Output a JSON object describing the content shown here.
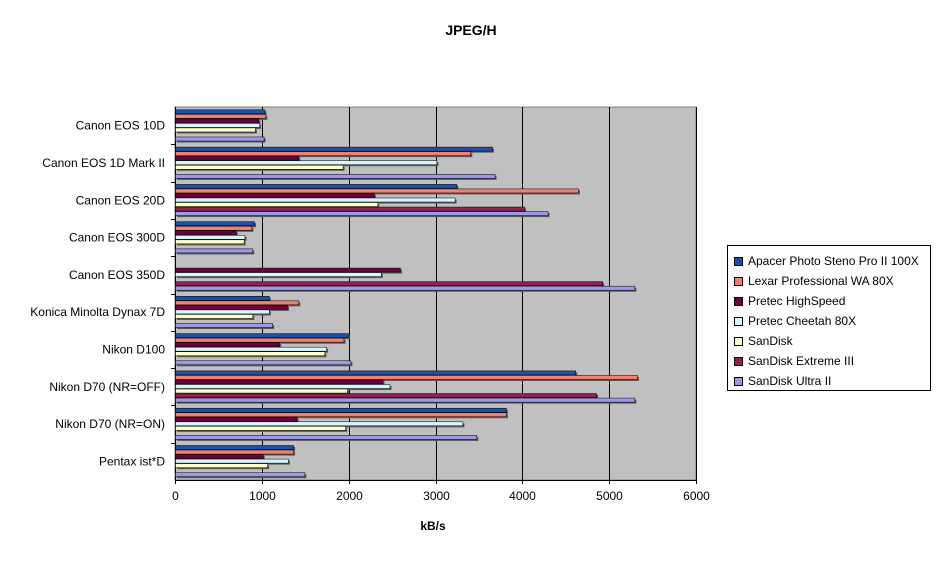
{
  "chart_data": {
    "type": "bar",
    "orientation": "horizontal",
    "title": "JPEG/H",
    "xlabel": "kB/s",
    "ylabel": "",
    "xlim": [
      0,
      6000
    ],
    "xticks": [
      0,
      1000,
      2000,
      3000,
      4000,
      5000,
      6000
    ],
    "grid": "vertical",
    "legend_position": "right",
    "plot_background": "#c0c0c0",
    "categories": [
      "Canon EOS 10D",
      "Canon EOS 1D Mark II",
      "Canon EOS 20D",
      "Canon EOS 300D",
      "Canon EOS 350D",
      "Konica Minolta Dynax 7D",
      "Nikon D100",
      "Nikon D70 (NR=OFF)",
      "Nikon D70 (NR=ON)",
      "Pentax ist*D"
    ],
    "series": [
      {
        "name": "Apacer Photo Steno Pro II 100X",
        "color": "#1f4fa8",
        "values": [
          1030,
          3650,
          3240,
          910,
          0,
          1080,
          1990,
          4610,
          3810,
          1360
        ]
      },
      {
        "name": "Lexar Professional WA 80X",
        "color": "#f08070",
        "values": [
          1040,
          3400,
          4640,
          880,
          0,
          1420,
          1940,
          5320,
          3810,
          1360
        ]
      },
      {
        "name": "Pretec HighSpeed",
        "color": "#6a0040",
        "values": [
          960,
          1420,
          2290,
          700,
          2590,
          1290,
          1200,
          2390,
          1400,
          1010
        ]
      },
      {
        "name": "Pretec Cheetah 80X",
        "color": "#d8f4fc",
        "values": [
          970,
          3010,
          3220,
          800,
          2370,
          1080,
          1740,
          2470,
          3310,
          1300
        ]
      },
      {
        "name": "SanDisk",
        "color": "#ffffcc",
        "values": [
          920,
          1930,
          2330,
          790,
          0,
          890,
          1720,
          1980,
          1960,
          1060
        ]
      },
      {
        "name": "SanDisk Extreme III",
        "color": "#8b2252",
        "values": [
          0,
          0,
          4020,
          0,
          4920,
          0,
          0,
          4850,
          0,
          0
        ]
      },
      {
        "name": "SanDisk Ultra II",
        "color": "#9a9ae6",
        "values": [
          1020,
          3680,
          4290,
          890,
          5290,
          1120,
          2020,
          5290,
          3470,
          1490
        ]
      }
    ]
  }
}
